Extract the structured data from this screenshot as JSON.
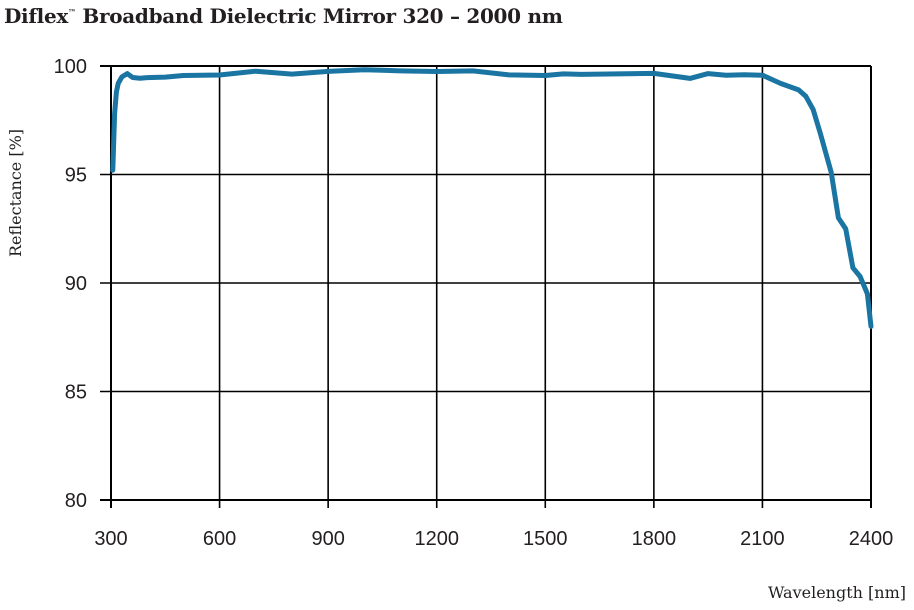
{
  "title": {
    "main": "Diflex",
    "tm": "™",
    "rest": " Broadband Dielectric Mirror 320 – 2000 nm"
  },
  "colors": {
    "line": "#1a75a3",
    "grid": "#000000",
    "text": "#231f20"
  },
  "chart_data": {
    "type": "line",
    "title": "Diflex™ Broadband Dielectric Mirror 320 – 2000 nm",
    "xlabel": "Wavelength [nm]",
    "ylabel": "Reflectance [%]",
    "xlim": [
      300,
      2400
    ],
    "ylim": [
      80,
      100
    ],
    "xticks": [
      300,
      600,
      900,
      1200,
      1500,
      1800,
      2100,
      2400
    ],
    "yticks": [
      80,
      85,
      90,
      95,
      100
    ],
    "grid": true,
    "legend": null,
    "series": [
      {
        "name": "Reflectance",
        "x": [
          305,
          310,
          315,
          320,
          330,
          345,
          360,
          380,
          400,
          450,
          500,
          600,
          700,
          800,
          900,
          1000,
          1050,
          1100,
          1200,
          1300,
          1400,
          1500,
          1550,
          1600,
          1700,
          1800,
          1900,
          1950,
          2000,
          2050,
          2100,
          2150,
          2200,
          2220,
          2240,
          2260,
          2290,
          2310,
          2330,
          2350,
          2370,
          2390,
          2400
        ],
        "y": [
          95.2,
          97.8,
          98.8,
          99.2,
          99.5,
          99.6,
          99.4,
          99.5,
          99.5,
          99.5,
          99.55,
          99.55,
          99.7,
          99.7,
          99.8,
          99.85,
          99.8,
          99.75,
          99.7,
          99.7,
          99.65,
          99.6,
          99.65,
          99.6,
          99.6,
          99.6,
          99.5,
          99.7,
          99.6,
          99.6,
          99.55,
          99.2,
          98.9,
          98.6,
          98.0,
          96.9,
          95.1,
          93.0,
          92.5,
          90.7,
          90.3,
          89.5,
          88.0
        ]
      }
    ]
  },
  "axis": {
    "x_label": "Wavelength [nm]",
    "y_label": "Reflectance [%]",
    "x_ticks": [
      "300",
      "600",
      "900",
      "1200",
      "1500",
      "1800",
      "2100",
      "2400"
    ],
    "y_ticks": [
      "100",
      "95",
      "90",
      "85",
      "80"
    ]
  }
}
